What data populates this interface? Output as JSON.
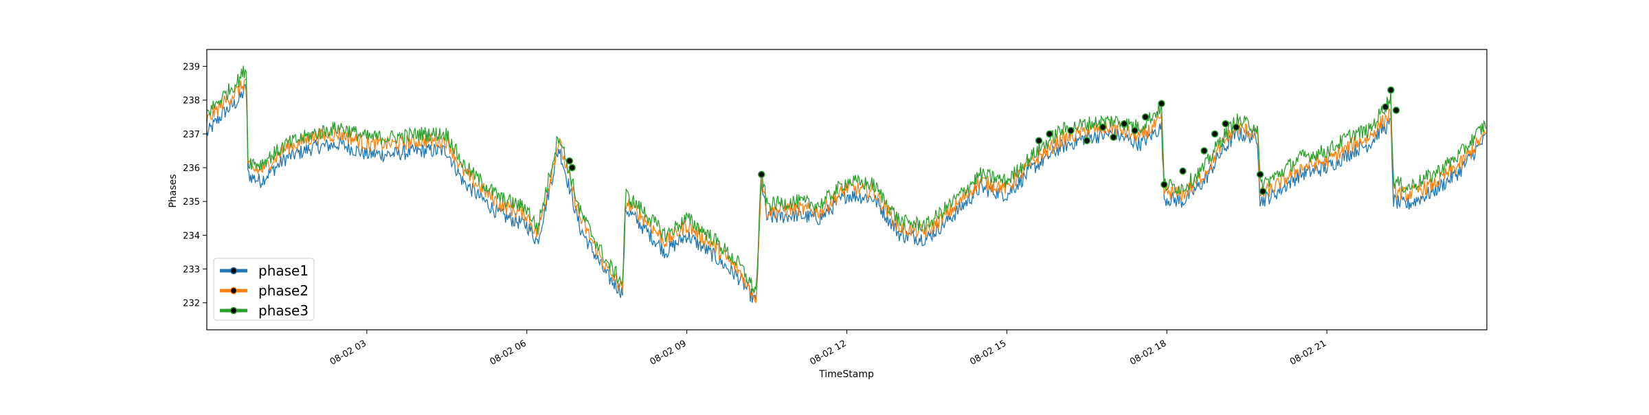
{
  "chart_data": {
    "type": "line",
    "xlabel": "TimeStamp",
    "ylabel": "Phases",
    "x_range": [
      "08-02 00:00",
      "08-02 23:59"
    ],
    "ylim": [
      231.2,
      239.5
    ],
    "x_tick_labels": [
      "08-02 03",
      "08-02 06",
      "08-02 09",
      "08-02 12",
      "08-02 15",
      "08-02 18",
      "08-02 21"
    ],
    "y_tick_labels": [
      "232",
      "233",
      "234",
      "235",
      "236",
      "237",
      "238",
      "239"
    ],
    "legend_position": "lower-left",
    "grid": false,
    "series": [
      {
        "name": "phase1",
        "color": "#1f77b4",
        "x_hours": [
          0,
          0.3,
          0.6,
          0.75,
          0.76,
          1.0,
          1.5,
          2.0,
          2.5,
          3.0,
          3.5,
          4.0,
          4.5,
          4.8,
          5.0,
          5.5,
          6.0,
          6.2,
          6.6,
          7.0,
          7.5,
          7.8,
          7.85,
          8.2,
          8.6,
          9.0,
          9.5,
          10.0,
          10.3,
          10.4,
          10.5,
          11.0,
          11.5,
          12.0,
          12.5,
          13.0,
          13.5,
          14.0,
          14.5,
          15.0,
          15.5,
          16.0,
          16.5,
          17.0,
          17.5,
          17.9,
          17.95,
          18.3,
          18.7,
          19.0,
          19.3,
          19.7,
          19.75,
          20.0,
          20.5,
          21.0,
          21.5,
          21.8,
          22.0,
          22.2,
          22.25,
          22.5,
          23.0,
          23.5,
          23.98
        ],
        "values": [
          237.0,
          237.6,
          238.0,
          238.4,
          235.8,
          235.6,
          236.3,
          236.6,
          236.7,
          236.4,
          236.4,
          236.5,
          236.5,
          235.6,
          235.3,
          234.6,
          234.3,
          233.8,
          236.6,
          234.2,
          232.8,
          232.3,
          234.8,
          234.2,
          233.5,
          234.0,
          233.4,
          232.7,
          232.0,
          235.6,
          234.5,
          234.6,
          234.5,
          235.2,
          235.1,
          234.0,
          233.9,
          234.6,
          235.4,
          235.2,
          236.0,
          236.6,
          236.9,
          237.0,
          236.7,
          237.2,
          235.1,
          235.0,
          235.6,
          236.4,
          237.0,
          236.9,
          235.0,
          235.2,
          235.8,
          236.0,
          236.5,
          236.7,
          237.1,
          237.3,
          235.0,
          234.9,
          235.3,
          235.9,
          236.9
        ]
      },
      {
        "name": "phase2",
        "color": "#ff7f0e",
        "x_hours": [
          0,
          0.3,
          0.6,
          0.75,
          0.76,
          1.0,
          1.5,
          2.0,
          2.5,
          3.0,
          3.5,
          4.0,
          4.5,
          4.8,
          5.0,
          5.5,
          6.0,
          6.2,
          6.6,
          7.0,
          7.5,
          7.8,
          7.85,
          8.2,
          8.6,
          9.0,
          9.5,
          10.0,
          10.3,
          10.4,
          10.5,
          11.0,
          11.5,
          12.0,
          12.5,
          13.0,
          13.5,
          14.0,
          14.5,
          15.0,
          15.5,
          16.0,
          16.5,
          17.0,
          17.5,
          17.9,
          17.95,
          18.3,
          18.7,
          19.0,
          19.3,
          19.7,
          19.75,
          20.0,
          20.5,
          21.0,
          21.5,
          21.8,
          22.0,
          22.2,
          22.25,
          22.5,
          23.0,
          23.5,
          23.98
        ],
        "values": [
          237.4,
          237.9,
          238.3,
          238.6,
          236.0,
          235.9,
          236.6,
          236.9,
          237.0,
          236.7,
          236.7,
          236.8,
          236.8,
          235.9,
          235.6,
          234.9,
          234.6,
          234.0,
          236.8,
          234.5,
          233.0,
          232.4,
          235.0,
          234.5,
          233.8,
          234.3,
          233.7,
          232.9,
          232.1,
          235.8,
          234.7,
          234.8,
          234.7,
          235.4,
          235.3,
          234.2,
          234.1,
          234.8,
          235.6,
          235.4,
          236.2,
          236.8,
          237.1,
          237.2,
          236.9,
          237.4,
          235.3,
          235.2,
          235.8,
          236.6,
          237.2,
          237.0,
          235.2,
          235.4,
          236.0,
          236.2,
          236.7,
          236.9,
          237.3,
          237.6,
          235.3,
          235.2,
          235.5,
          236.1,
          237.0
        ]
      },
      {
        "name": "phase3",
        "color": "#2ca02c",
        "x_hours": [
          0,
          0.3,
          0.6,
          0.75,
          0.76,
          1.0,
          1.5,
          2.0,
          2.5,
          3.0,
          3.5,
          4.0,
          4.5,
          4.8,
          5.0,
          5.5,
          6.0,
          6.2,
          6.6,
          7.0,
          7.5,
          7.8,
          7.85,
          8.2,
          8.6,
          9.0,
          9.5,
          10.0,
          10.3,
          10.4,
          10.5,
          11.0,
          11.5,
          12.0,
          12.5,
          13.0,
          13.5,
          14.0,
          14.5,
          15.0,
          15.5,
          16.0,
          16.5,
          17.0,
          17.5,
          17.9,
          17.95,
          18.3,
          18.7,
          19.0,
          19.3,
          19.7,
          19.75,
          20.0,
          20.5,
          21.0,
          21.5,
          21.8,
          22.0,
          22.2,
          22.25,
          22.5,
          23.0,
          23.5,
          23.98
        ],
        "values": [
          237.6,
          238.1,
          238.6,
          239.0,
          236.2,
          236.1,
          236.7,
          237.0,
          237.2,
          236.9,
          236.9,
          237.0,
          237.0,
          236.1,
          235.8,
          235.1,
          234.8,
          234.2,
          237.0,
          234.7,
          233.2,
          232.6,
          235.2,
          234.7,
          234.0,
          234.5,
          233.9,
          233.1,
          232.3,
          235.9,
          234.9,
          235.0,
          234.9,
          235.6,
          235.5,
          234.4,
          234.3,
          235.0,
          235.8,
          235.6,
          236.4,
          237.1,
          237.3,
          237.4,
          237.2,
          237.8,
          235.5,
          235.4,
          236.0,
          236.8,
          237.4,
          237.2,
          235.5,
          235.7,
          236.3,
          236.5,
          237.0,
          237.1,
          237.6,
          238.1,
          235.6,
          235.4,
          235.8,
          236.4,
          237.3
        ]
      }
    ],
    "highlight_points": {
      "description_color": "#0b0b0b",
      "x_hours": [
        6.8,
        6.85,
        10.4,
        15.6,
        15.8,
        16.2,
        16.5,
        16.8,
        17.0,
        17.2,
        17.4,
        17.6,
        17.9,
        17.95,
        18.3,
        18.7,
        18.9,
        19.1,
        19.3,
        19.75,
        19.8,
        22.1,
        22.2,
        22.3
      ],
      "values": [
        236.2,
        236.0,
        235.8,
        236.8,
        237.0,
        237.1,
        236.8,
        237.2,
        236.9,
        237.3,
        237.1,
        237.5,
        237.9,
        235.5,
        235.9,
        236.5,
        237.0,
        237.3,
        237.2,
        235.8,
        235.3,
        237.8,
        238.3,
        237.7
      ]
    }
  }
}
